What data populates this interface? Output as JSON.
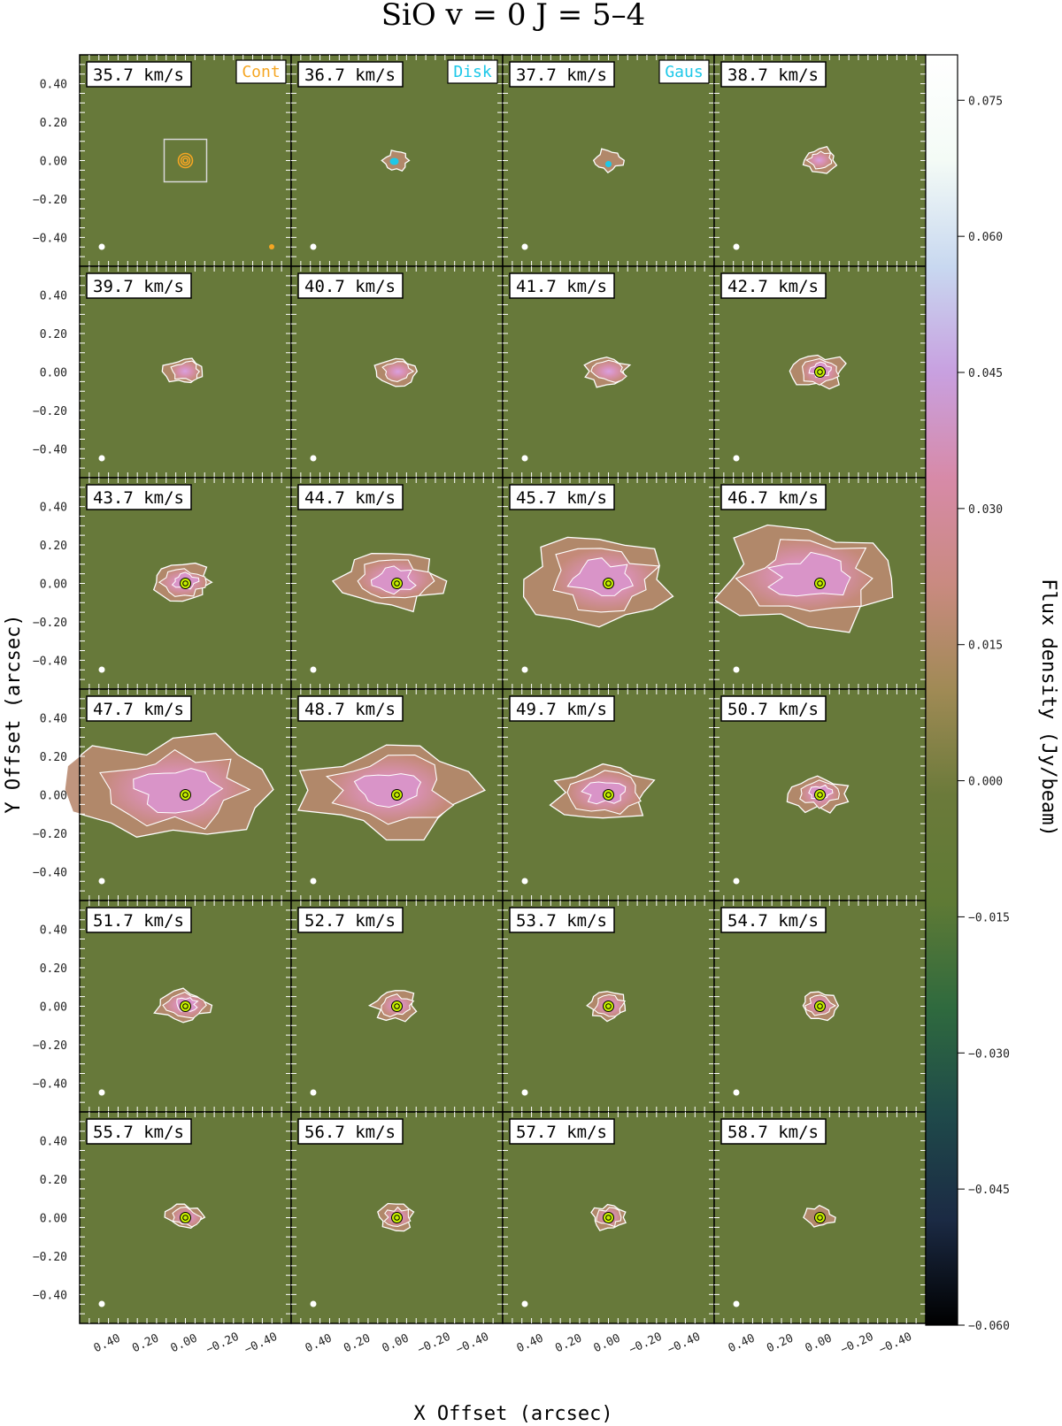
{
  "chart_data": {
    "type": "heatmap",
    "title": "SiO  v = 0  J = 5–4",
    "xlabel": "X Offset (arcsec)",
    "ylabel": "Y Offset (arcsec)",
    "colorbar_label": "Flux density (Jy/beam)",
    "colorbar_ticks": [
      "0.075",
      "0.060",
      "0.045",
      "0.030",
      "0.015",
      "0.000",
      "−0.015",
      "−0.030",
      "−0.045",
      "−0.060"
    ],
    "colorbar_tick_values": [
      0.075,
      0.06,
      0.045,
      0.03,
      0.015,
      0.0,
      -0.015,
      -0.03,
      -0.045,
      -0.06
    ],
    "colorbar_range": [
      -0.06,
      0.08
    ],
    "colormap": [
      "#000000",
      "#1b2a44",
      "#1f4a4a",
      "#2f6a3e",
      "#5f7a35",
      "#6b7a3a",
      "#a08a55",
      "#c98a80",
      "#d78aa8",
      "#c8a0e0",
      "#c8d8f0",
      "#f4fbf6",
      "#ffffff"
    ],
    "x_ticks": [
      "0.40",
      "0.20",
      "0.00",
      "−0.20",
      "−0.40"
    ],
    "y_ticks": [
      "0.40",
      "0.20",
      "0.00",
      "−0.20",
      "−0.40"
    ],
    "xlim": [
      0.55,
      -0.55
    ],
    "ylim": [
      -0.55,
      0.55
    ],
    "legend_labels": [
      {
        "panel": 0,
        "text": "Cont",
        "color": "#f5a623"
      },
      {
        "panel": 1,
        "text": "Disk",
        "color": "#1ec8e8"
      },
      {
        "panel": 2,
        "text": "Gaus",
        "color": "#1ec8e8"
      }
    ],
    "contour_color": "#ffffff",
    "panels": [
      {
        "velocity": "35.7 km/s",
        "emission": 0.0
      },
      {
        "velocity": "36.7 km/s",
        "emission": 0.02
      },
      {
        "velocity": "37.7 km/s",
        "emission": 0.04
      },
      {
        "velocity": "38.7 km/s",
        "emission": 0.08
      },
      {
        "velocity": "39.7 km/s",
        "emission": 0.1
      },
      {
        "velocity": "40.7 km/s",
        "emission": 0.11
      },
      {
        "velocity": "41.7 km/s",
        "emission": 0.14
      },
      {
        "velocity": "42.7 km/s",
        "emission": 0.18
      },
      {
        "velocity": "43.7 km/s",
        "emission": 0.22
      },
      {
        "velocity": "44.7 km/s",
        "emission": 0.45
      },
      {
        "velocity": "45.7 km/s",
        "emission": 0.75
      },
      {
        "velocity": "46.7 km/s",
        "emission": 0.95
      },
      {
        "velocity": "47.7 km/s",
        "emission": 1.0
      },
      {
        "velocity": "48.7 km/s",
        "emission": 0.85
      },
      {
        "velocity": "49.7 km/s",
        "emission": 0.45
      },
      {
        "velocity": "50.7 km/s",
        "emission": 0.2
      },
      {
        "velocity": "51.7 km/s",
        "emission": 0.18
      },
      {
        "velocity": "52.7 km/s",
        "emission": 0.13
      },
      {
        "velocity": "53.7 km/s",
        "emission": 0.11
      },
      {
        "velocity": "54.7 km/s",
        "emission": 0.1
      },
      {
        "velocity": "55.7 km/s",
        "emission": 0.08
      },
      {
        "velocity": "56.7 km/s",
        "emission": 0.08
      },
      {
        "velocity": "57.7 km/s",
        "emission": 0.07
      },
      {
        "velocity": "58.7 km/s",
        "emission": 0.05
      }
    ]
  }
}
